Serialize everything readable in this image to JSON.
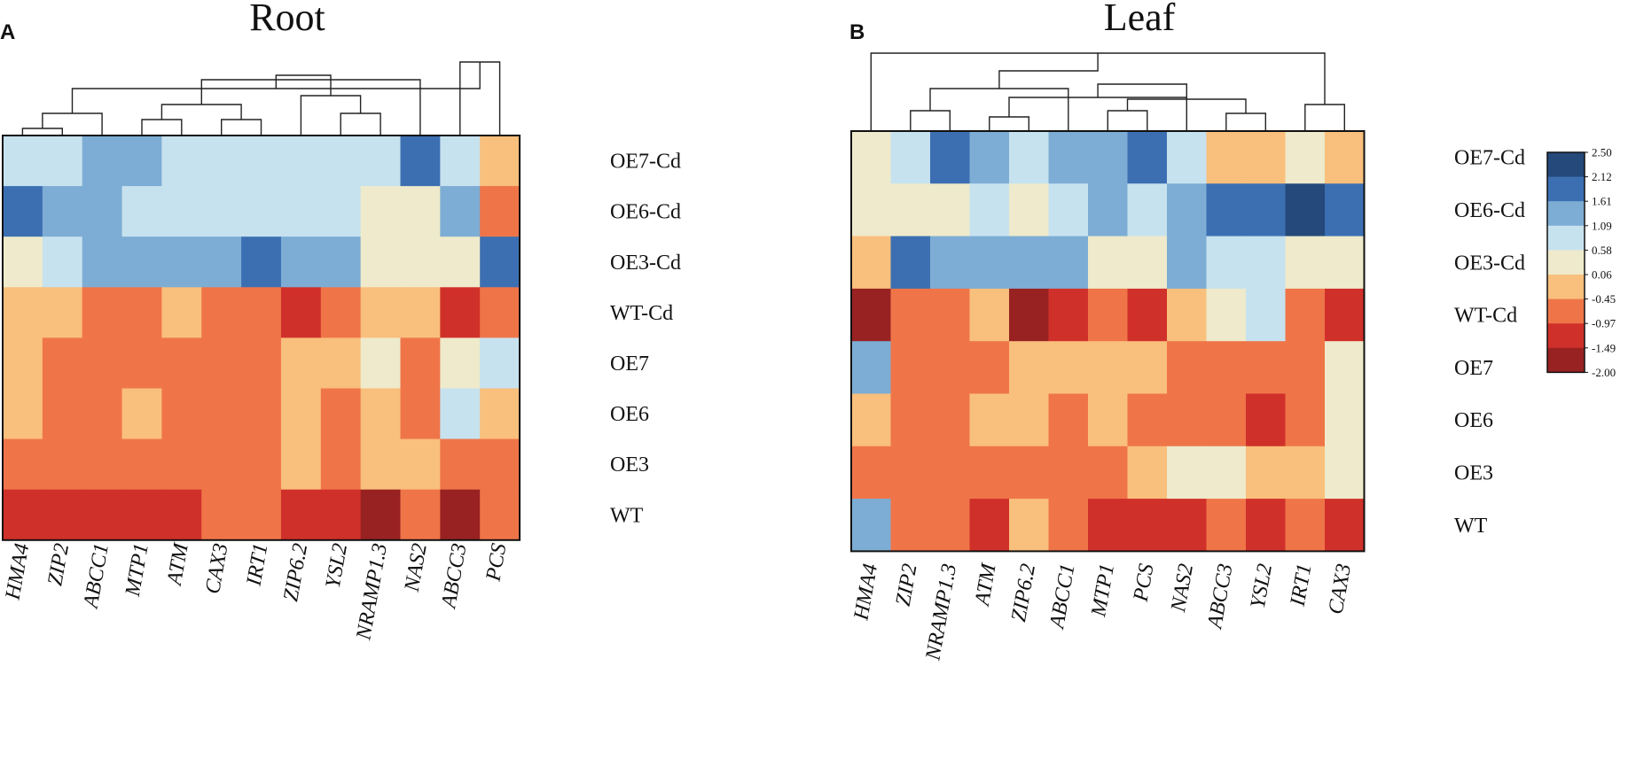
{
  "colors": {
    "scale": [
      "#982222",
      "#d0302a",
      "#ef7549",
      "#f9bf7c",
      "#eeeacb",
      "#c7e2ef",
      "#7dadd4",
      "#3c6fb2",
      "#24497a"
    ]
  },
  "chart_data": [
    {
      "type": "heatmap",
      "panel_label": "A",
      "title": "Root",
      "rows": [
        "OE7-Cd",
        "OE6-Cd",
        "OE3-Cd",
        "WT-Cd",
        "OE7",
        "OE6",
        "OE3",
        "WT"
      ],
      "columns": [
        "HMA4",
        "ZIP2",
        "ABCC1",
        "MTP1",
        "ATM",
        "CAX3",
        "IRT1",
        "ZIP6.2",
        "YSL2",
        "NRAMP1.3",
        "NAS2",
        "ABCC3",
        "PCS"
      ],
      "levels": [
        [
          5,
          5,
          6,
          6,
          5,
          5,
          5,
          5,
          5,
          5,
          7,
          5,
          3
        ],
        [
          7,
          6,
          6,
          5,
          5,
          5,
          5,
          5,
          5,
          4,
          4,
          6,
          2
        ],
        [
          4,
          5,
          6,
          6,
          6,
          6,
          7,
          6,
          6,
          4,
          4,
          4,
          7
        ],
        [
          3,
          3,
          2,
          2,
          3,
          2,
          2,
          1,
          2,
          3,
          3,
          1,
          2
        ],
        [
          3,
          2,
          2,
          2,
          2,
          2,
          2,
          3,
          3,
          4,
          2,
          4,
          5
        ],
        [
          3,
          2,
          2,
          3,
          2,
          2,
          2,
          3,
          2,
          3,
          2,
          5,
          3
        ],
        [
          2,
          2,
          2,
          2,
          2,
          2,
          2,
          3,
          2,
          3,
          3,
          2,
          2
        ],
        [
          1,
          1,
          1,
          1,
          1,
          2,
          2,
          1,
          1,
          0,
          2,
          0,
          2
        ]
      ]
    },
    {
      "type": "heatmap",
      "panel_label": "B",
      "title": "Leaf",
      "rows": [
        "OE7-Cd",
        "OE6-Cd",
        "OE3-Cd",
        "WT-Cd",
        "OE7",
        "OE6",
        "OE3",
        "WT"
      ],
      "columns": [
        "HMA4",
        "ZIP2",
        "NRAMP1.3",
        "ATM",
        "ZIP6.2",
        "ABCC1",
        "MTP1",
        "PCS",
        "NAS2",
        "ABCC3",
        "YSL2",
        "IRT1",
        "CAX3"
      ],
      "levels": [
        [
          4,
          5,
          7,
          6,
          5,
          6,
          6,
          7,
          5,
          3,
          3,
          4,
          3
        ],
        [
          4,
          4,
          4,
          5,
          4,
          5,
          6,
          5,
          6,
          7,
          7,
          8,
          7
        ],
        [
          3,
          7,
          6,
          6,
          6,
          6,
          4,
          4,
          6,
          5,
          5,
          4,
          4
        ],
        [
          0,
          2,
          2,
          3,
          0,
          1,
          2,
          1,
          3,
          4,
          5,
          2,
          1
        ],
        [
          6,
          2,
          2,
          2,
          3,
          3,
          3,
          3,
          2,
          2,
          2,
          2,
          4
        ],
        [
          3,
          2,
          2,
          3,
          3,
          2,
          3,
          2,
          2,
          2,
          1,
          2,
          4
        ],
        [
          2,
          2,
          2,
          2,
          2,
          2,
          2,
          3,
          4,
          4,
          3,
          3,
          4
        ],
        [
          6,
          2,
          2,
          1,
          3,
          2,
          1,
          1,
          1,
          2,
          1,
          2,
          1
        ]
      ]
    }
  ],
  "legend": {
    "ticks": [
      "2.50",
      "2.12",
      "1.61",
      "1.09",
      "0.58",
      "0.06",
      "-0.45",
      "-0.97",
      "-1.49",
      "-2.00"
    ]
  }
}
